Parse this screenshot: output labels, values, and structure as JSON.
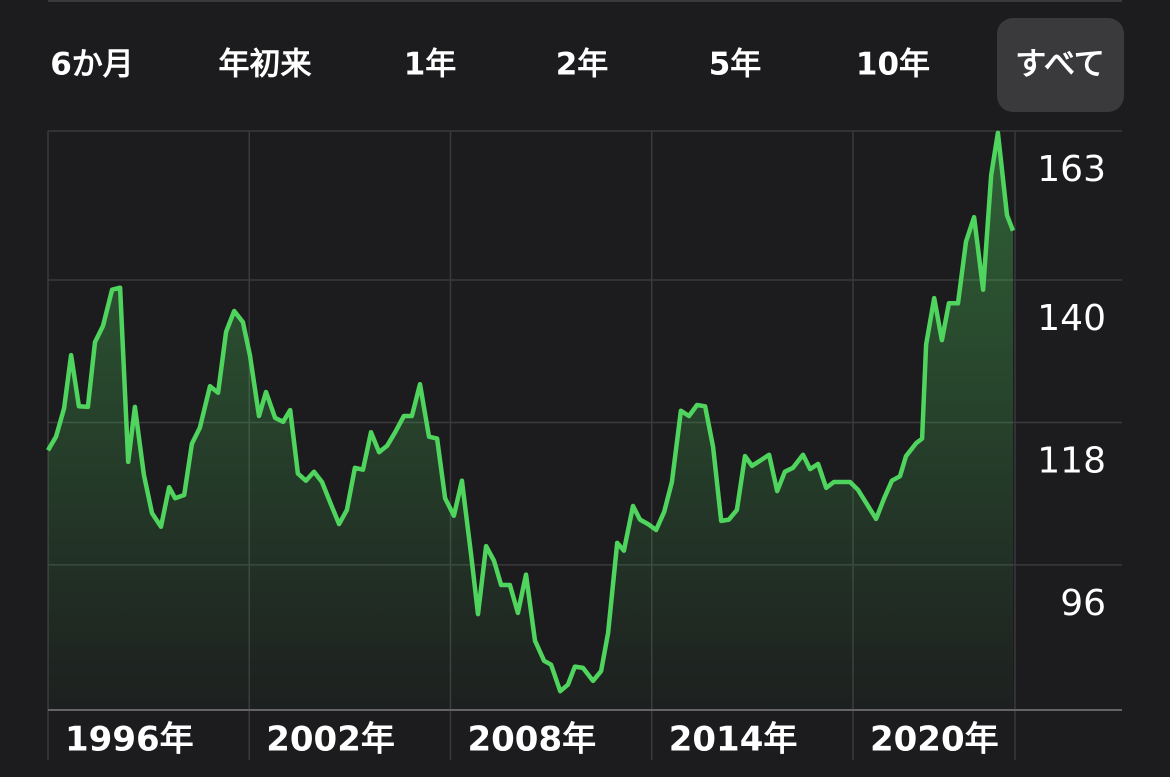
{
  "tabs": {
    "items": [
      "6か月",
      "年初来",
      "1年",
      "2年",
      "5年",
      "10年",
      "すべて"
    ],
    "selected": 6
  },
  "chart_data": {
    "type": "line",
    "color": "#4fd45e",
    "grid": true,
    "x": [
      1996.0,
      1996.24,
      1996.48,
      1996.69,
      1996.92,
      1997.19,
      1997.4,
      1997.64,
      1997.91,
      1998.15,
      1998.39,
      1998.59,
      1998.86,
      1999.1,
      1999.37,
      1999.61,
      1999.79,
      2000.06,
      2000.29,
      2000.53,
      2000.83,
      2001.07,
      2001.31,
      2001.55,
      2001.81,
      2002.02,
      2002.29,
      2002.5,
      2002.77,
      2003.01,
      2003.22,
      2003.45,
      2003.69,
      2003.93,
      2004.17,
      2004.44,
      2004.68,
      2004.91,
      2005.15,
      2005.39,
      2005.63,
      2005.87,
      2006.11,
      2006.35,
      2006.61,
      2006.85,
      2007.09,
      2007.36,
      2007.6,
      2007.84,
      2008.1,
      2008.34,
      2008.61,
      2008.82,
      2009.06,
      2009.3,
      2009.51,
      2009.77,
      2010.01,
      2010.25,
      2010.52,
      2010.79,
      2011.0,
      2011.27,
      2011.5,
      2011.71,
      2011.95,
      2012.25,
      2012.49,
      2012.7,
      2012.97,
      2013.17,
      2013.44,
      2013.65,
      2013.89,
      2014.13,
      2014.37,
      2014.6,
      2014.87,
      2015.11,
      2015.35,
      2015.59,
      2015.83,
      2016.07,
      2016.3,
      2016.54,
      2016.78,
      2016.99,
      2017.23,
      2017.5,
      2017.74,
      2017.97,
      2018.21,
      2018.51,
      2018.72,
      2018.96,
      2019.2,
      2019.43,
      2019.67,
      2019.91,
      2020.15,
      2020.39,
      2020.69,
      2020.93,
      2021.16,
      2021.4,
      2021.58,
      2021.88,
      2022.06,
      2022.18,
      2022.42,
      2022.65,
      2022.86,
      2023.13,
      2023.37,
      2023.61,
      2023.88,
      2024.12,
      2024.32,
      2024.59,
      2024.77
    ],
    "values": [
      113.7,
      115.8,
      120.2,
      128.4,
      120.5,
      120.4,
      130.4,
      132.9,
      138.5,
      138.8,
      111.9,
      120.4,
      109.9,
      104.0,
      101.9,
      108.0,
      106.3,
      106.8,
      114.7,
      117.2,
      123.6,
      122.6,
      132.0,
      135.2,
      133.5,
      128.4,
      119.0,
      122.7,
      118.7,
      118.1,
      119.9,
      110.1,
      109.0,
      110.4,
      108.8,
      105.3,
      102.3,
      104.5,
      111.0,
      110.7,
      116.5,
      113.4,
      114.4,
      116.5,
      119.0,
      119.0,
      123.9,
      115.8,
      115.5,
      106.3,
      103.6,
      109.0,
      97.7,
      88.4,
      98.9,
      96.6,
      92.9,
      92.9,
      88.6,
      94.5,
      84.3,
      81.2,
      80.6,
      76.5,
      77.5,
      80.3,
      80.1,
      78.1,
      79.6,
      85.5,
      99.4,
      98.2,
      105.1,
      103.0,
      102.3,
      101.4,
      104.2,
      108.8,
      119.8,
      119.0,
      120.7,
      120.5,
      114.2,
      102.8,
      103.0,
      104.5,
      112.8,
      111.3,
      112.1,
      113.0,
      107.4,
      110.4,
      111.0,
      113.0,
      110.8,
      111.6,
      107.9,
      108.8,
      108.8,
      108.8,
      107.6,
      105.6,
      103.1,
      106.3,
      109.0,
      109.7,
      112.8,
      114.8,
      115.5,
      130.0,
      137.2,
      130.7,
      136.4,
      136.4,
      145.9,
      149.7,
      138.5,
      156.2,
      162.7,
      150.0,
      147.6
    ],
    "xlim": [
      1996,
      2024.83
    ],
    "xticks": [
      {
        "value": 1996,
        "label": "1996年"
      },
      {
        "value": 2002,
        "label": "2002年"
      },
      {
        "value": 2008,
        "label": "2008年"
      },
      {
        "value": 2014,
        "label": "2014年"
      },
      {
        "value": 2020,
        "label": "2020年"
      }
    ],
    "ylim": [
      73.6,
      163
    ],
    "yticks": [
      163,
      140,
      118,
      96
    ]
  }
}
